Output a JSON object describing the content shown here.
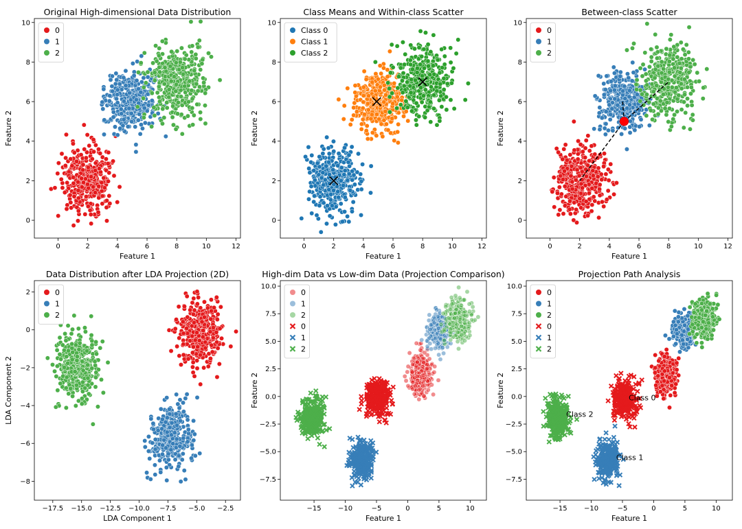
{
  "colors": {
    "red": "#e41a1c",
    "blue": "#377eb8",
    "green": "#4daf4a",
    "orange": "#ff7f0e",
    "tab_blue": "#1f77b4",
    "tab_green": "#2ca02c"
  },
  "chart_data": [
    {
      "type": "scatter",
      "title": "Original High-dimensional Data Distribution",
      "xlabel": "Feature 1",
      "ylabel": "Feature 2",
      "xlim": [
        -1.6,
        12.3
      ],
      "ylim": [
        -0.9,
        10.2
      ],
      "xticks": [
        0,
        2,
        4,
        6,
        8,
        10,
        12
      ],
      "yticks": [
        0,
        2,
        4,
        6,
        8,
        10
      ],
      "legend": {
        "position": "top-left",
        "entries": [
          {
            "label": "0",
            "color": "red",
            "marker": "o"
          },
          {
            "label": "1",
            "color": "blue",
            "marker": "o"
          },
          {
            "label": "2",
            "color": "green",
            "marker": "o"
          }
        ]
      },
      "series": [
        {
          "name": "0",
          "center": [
            2,
            2
          ],
          "spread": [
            0.85,
            0.85
          ],
          "count": 380,
          "color": "red",
          "marker": "o"
        },
        {
          "name": "1",
          "center": [
            5,
            6
          ],
          "spread": [
            0.85,
            0.75
          ],
          "count": 380,
          "color": "blue",
          "marker": "o"
        },
        {
          "name": "2",
          "center": [
            8,
            7
          ],
          "spread": [
            1.0,
            0.9
          ],
          "count": 380,
          "color": "green",
          "marker": "o"
        }
      ]
    },
    {
      "type": "scatter",
      "title": "Class Means and Within-class Scatter",
      "xlabel": "Feature 1",
      "ylabel": "Feature 2",
      "xlim": [
        -1.6,
        12.3
      ],
      "ylim": [
        -0.9,
        10.2
      ],
      "xticks": [
        0,
        2,
        4,
        6,
        8,
        10,
        12
      ],
      "yticks": [
        0,
        2,
        4,
        6,
        8,
        10
      ],
      "legend": {
        "position": "top-left",
        "entries": [
          {
            "label": "Class 0",
            "color": "tab_blue",
            "marker": "o"
          },
          {
            "label": "Class 1",
            "color": "orange",
            "marker": "o"
          },
          {
            "label": "Class 2",
            "color": "tab_green",
            "marker": "o"
          }
        ]
      },
      "series": [
        {
          "name": "Class 0",
          "center": [
            2,
            2
          ],
          "spread": [
            0.85,
            0.85
          ],
          "count": 380,
          "color": "tab_blue",
          "marker": "o"
        },
        {
          "name": "Class 1",
          "center": [
            5,
            6
          ],
          "spread": [
            0.85,
            0.75
          ],
          "count": 380,
          "color": "orange",
          "marker": "o"
        },
        {
          "name": "Class 2",
          "center": [
            8,
            7
          ],
          "spread": [
            1.0,
            0.9
          ],
          "count": 380,
          "color": "tab_green",
          "marker": "o"
        }
      ],
      "means": [
        [
          2.0,
          2.0
        ],
        [
          4.9,
          6.0
        ],
        [
          8.0,
          7.0
        ]
      ]
    },
    {
      "type": "scatter",
      "title": "Between-class Scatter",
      "xlabel": "Feature 1",
      "ylabel": "Feature 2",
      "xlim": [
        -1.6,
        12.3
      ],
      "ylim": [
        -0.9,
        10.2
      ],
      "xticks": [
        0,
        2,
        4,
        6,
        8,
        10,
        12
      ],
      "yticks": [
        0,
        2,
        4,
        6,
        8,
        10
      ],
      "legend": {
        "position": "top-left",
        "entries": [
          {
            "label": "0",
            "color": "red",
            "marker": "o"
          },
          {
            "label": "1",
            "color": "blue",
            "marker": "o"
          },
          {
            "label": "2",
            "color": "green",
            "marker": "o"
          }
        ]
      },
      "series": [
        {
          "name": "0",
          "center": [
            2,
            2
          ],
          "spread": [
            0.85,
            0.85
          ],
          "count": 380,
          "color": "red",
          "marker": "o"
        },
        {
          "name": "1",
          "center": [
            5,
            6
          ],
          "spread": [
            0.85,
            0.75
          ],
          "count": 380,
          "color": "blue",
          "marker": "o"
        },
        {
          "name": "2",
          "center": [
            8,
            7
          ],
          "spread": [
            1.0,
            0.9
          ],
          "count": 380,
          "color": "green",
          "marker": "o"
        }
      ],
      "overall_mean": [
        5.0,
        5.0
      ],
      "between_lines": [
        [
          [
            5.0,
            5.0
          ],
          [
            2.0,
            2.0
          ]
        ],
        [
          [
            5.0,
            5.0
          ],
          [
            8.0,
            7.0
          ]
        ],
        [
          [
            5.0,
            5.0
          ],
          [
            4.9,
            6.0
          ]
        ]
      ]
    },
    {
      "type": "scatter",
      "title": "Data Distribution after LDA Projection (2D)",
      "xlabel": "LDA Component 1",
      "ylabel": "LDA Component 2",
      "xlim": [
        -19.1,
        -1.2
      ],
      "ylim": [
        -9.0,
        2.6
      ],
      "xticks": [
        -17.5,
        -15.0,
        -12.5,
        -10.0,
        -7.5,
        -5.0,
        -2.5
      ],
      "yticks": [
        -8,
        -6,
        -4,
        -2,
        0,
        2
      ],
      "legend": {
        "position": "top-left",
        "entries": [
          {
            "label": "0",
            "color": "red",
            "marker": "o"
          },
          {
            "label": "1",
            "color": "blue",
            "marker": "o"
          },
          {
            "label": "2",
            "color": "green",
            "marker": "o"
          }
        ]
      },
      "series": [
        {
          "name": "0",
          "center": [
            -4.7,
            -0.1
          ],
          "spread": [
            1.0,
            0.85
          ],
          "count": 380,
          "color": "red",
          "marker": "o"
        },
        {
          "name": "1",
          "center": [
            -7.3,
            -5.7
          ],
          "spread": [
            0.9,
            0.85
          ],
          "count": 380,
          "color": "blue",
          "marker": "o"
        },
        {
          "name": "2",
          "center": [
            -15.3,
            -2.0
          ],
          "spread": [
            1.0,
            0.9
          ],
          "count": 380,
          "color": "green",
          "marker": "o"
        }
      ]
    },
    {
      "type": "scatter",
      "title": "High-dim Data vs Low-dim Data (Projection Comparison)",
      "xlabel": "Feature 1",
      "ylabel": "Feature 2",
      "xlim": [
        -20.4,
        12.6
      ],
      "ylim": [
        -9.4,
        10.5
      ],
      "xticks": [
        -15,
        -10,
        -5,
        0,
        5,
        10
      ],
      "yticks": [
        -7.5,
        -5.0,
        -2.5,
        0.0,
        2.5,
        5.0,
        7.5,
        10.0
      ],
      "legend": {
        "position": "top-left",
        "entries": [
          {
            "label": "0",
            "color": "red",
            "marker": "o",
            "alpha": 0.5
          },
          {
            "label": "1",
            "color": "blue",
            "marker": "o",
            "alpha": 0.5
          },
          {
            "label": "2",
            "color": "green",
            "marker": "o",
            "alpha": 0.5
          },
          {
            "label": "0",
            "color": "red",
            "marker": "x"
          },
          {
            "label": "1",
            "color": "blue",
            "marker": "x"
          },
          {
            "label": "2",
            "color": "green",
            "marker": "x"
          }
        ]
      },
      "series": [
        {
          "name": "0",
          "center": [
            2,
            2
          ],
          "spread": [
            0.85,
            0.85
          ],
          "count": 320,
          "color": "red",
          "marker": "o",
          "alpha": 0.5
        },
        {
          "name": "1",
          "center": [
            5,
            6
          ],
          "spread": [
            0.85,
            0.75
          ],
          "count": 320,
          "color": "blue",
          "marker": "o",
          "alpha": 0.5
        },
        {
          "name": "2",
          "center": [
            8,
            7
          ],
          "spread": [
            1.0,
            0.9
          ],
          "count": 320,
          "color": "green",
          "marker": "o",
          "alpha": 0.5
        },
        {
          "name": "0",
          "center": [
            -4.7,
            -0.1
          ],
          "spread": [
            1.0,
            0.85
          ],
          "count": 260,
          "color": "red",
          "marker": "x"
        },
        {
          "name": "1",
          "center": [
            -7.3,
            -5.7
          ],
          "spread": [
            0.9,
            0.85
          ],
          "count": 260,
          "color": "blue",
          "marker": "x"
        },
        {
          "name": "2",
          "center": [
            -15.3,
            -2.0
          ],
          "spread": [
            1.0,
            0.9
          ],
          "count": 260,
          "color": "green",
          "marker": "x"
        }
      ]
    },
    {
      "type": "scatter",
      "title": "Projection Path Analysis",
      "xlabel": "Feature 1",
      "ylabel": "Feature 2",
      "xlim": [
        -20.4,
        12.6
      ],
      "ylim": [
        -9.4,
        10.5
      ],
      "xticks": [
        -15,
        -10,
        -5,
        0,
        5,
        10
      ],
      "yticks": [
        -7.5,
        -5.0,
        -2.5,
        0.0,
        2.5,
        5.0,
        7.5,
        10.0
      ],
      "legend": {
        "position": "top-left",
        "entries": [
          {
            "label": "0",
            "color": "red",
            "marker": "o"
          },
          {
            "label": "1",
            "color": "blue",
            "marker": "o"
          },
          {
            "label": "2",
            "color": "green",
            "marker": "o"
          },
          {
            "label": "0",
            "color": "red",
            "marker": "x"
          },
          {
            "label": "1",
            "color": "blue",
            "marker": "x"
          },
          {
            "label": "2",
            "color": "green",
            "marker": "x"
          }
        ]
      },
      "series": [
        {
          "name": "0",
          "center": [
            2,
            2
          ],
          "spread": [
            0.85,
            0.85
          ],
          "count": 320,
          "color": "red",
          "marker": "o"
        },
        {
          "name": "1",
          "center": [
            5,
            6
          ],
          "spread": [
            0.85,
            0.75
          ],
          "count": 320,
          "color": "blue",
          "marker": "o"
        },
        {
          "name": "2",
          "center": [
            8,
            7
          ],
          "spread": [
            1.0,
            0.9
          ],
          "count": 320,
          "color": "green",
          "marker": "o"
        },
        {
          "name": "0",
          "center": [
            -4.7,
            -0.1
          ],
          "spread": [
            1.0,
            0.85
          ],
          "count": 260,
          "color": "red",
          "marker": "x"
        },
        {
          "name": "1",
          "center": [
            -7.3,
            -5.7
          ],
          "spread": [
            0.9,
            0.85
          ],
          "count": 260,
          "color": "blue",
          "marker": "x"
        },
        {
          "name": "2",
          "center": [
            -15.3,
            -2.0
          ],
          "spread": [
            1.0,
            0.9
          ],
          "count": 260,
          "color": "green",
          "marker": "x"
        }
      ],
      "annotations": [
        {
          "text": "Class 0",
          "x": -4.0,
          "y": -0.1
        },
        {
          "text": "Class 1",
          "x": -6.0,
          "y": -5.5
        },
        {
          "text": "Class 2",
          "x": -14.0,
          "y": -1.6
        }
      ]
    }
  ]
}
